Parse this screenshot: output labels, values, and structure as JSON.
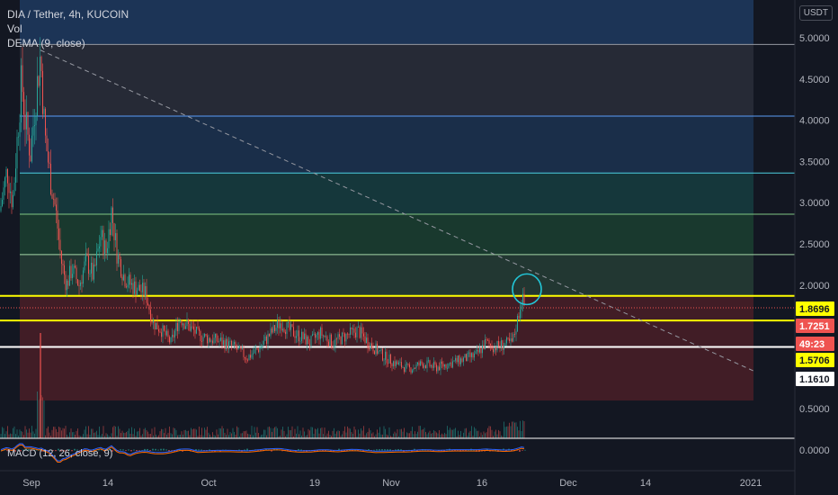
{
  "header": {
    "symbol": "DIA / Tether, 4h, KUCOIN",
    "indicator_vol": "Vol",
    "indicator_dema": "DEMA (9, close)",
    "indicator_macd": "MACD (12, 26, close, 9)",
    "currency": "USDT"
  },
  "colors": {
    "background": "#131722",
    "up": "#26a69a",
    "down": "#ef5350",
    "highlight_line": "#ffff00",
    "white_line": "#ffffff",
    "circle": "#22c5d6"
  },
  "chart_data": {
    "type": "candlestick",
    "y_axis": {
      "ticks": [
        "5.0000",
        "4.5000",
        "4.0000",
        "3.5000",
        "3.0000",
        "2.5000",
        "2.0000",
        "0.5000",
        "0.0000"
      ],
      "tick_values": [
        5.0,
        4.5,
        4.0,
        3.5,
        3.0,
        2.5,
        2.0,
        0.5,
        0.0
      ]
    },
    "x_axis": {
      "ticks": [
        "Sep",
        "14",
        "Oct",
        "19",
        "Nov",
        "16",
        "Dec",
        "14",
        "2021"
      ]
    },
    "price_tags": [
      {
        "label": "1.8696",
        "value": 1.8696,
        "style": "yellow"
      },
      {
        "label": "1.7251",
        "value": 1.7251,
        "style": "red"
      },
      {
        "label": "49:23",
        "value": 1.63,
        "style": "red-countdown"
      },
      {
        "label": "1.5706",
        "value": 1.5706,
        "style": "yellow"
      },
      {
        "label": "1.1610",
        "value": 1.161,
        "style": "white"
      }
    ],
    "horizontal_levels": [
      {
        "value": 4.92,
        "color": "#9598a1"
      },
      {
        "value": 4.05,
        "color": "#5b9cf6"
      },
      {
        "value": 3.36,
        "color": "#4dd0e1"
      },
      {
        "value": 2.86,
        "color": "#81c784"
      },
      {
        "value": 2.37,
        "color": "#a5d6a7"
      },
      {
        "value": 1.8696,
        "color": "#ffff00"
      },
      {
        "value": 1.5706,
        "color": "#ffff00"
      },
      {
        "value": 1.25,
        "color": "#ffffff"
      }
    ],
    "zones": [
      {
        "from": 4.92,
        "to": 5.5,
        "color": "#1e3a5f"
      },
      {
        "from": 4.05,
        "to": 4.92,
        "color": "#2a2e39"
      },
      {
        "from": 3.36,
        "to": 4.05,
        "color": "#1c3350"
      },
      {
        "from": 2.86,
        "to": 3.36,
        "color": "#163d3f"
      },
      {
        "from": 2.37,
        "to": 2.86,
        "color": "#1b4030"
      },
      {
        "from": 1.8696,
        "to": 2.37,
        "color": "#263d35"
      },
      {
        "from": 0.6,
        "to": 1.8696,
        "color": "#4a1f27"
      }
    ],
    "trendline": {
      "from": {
        "x": 45,
        "y": 4.85
      },
      "to": {
        "x": 840,
        "y": 0.95
      },
      "color": "#9598a1"
    },
    "current_price": 1.7251,
    "price_path": [
      [
        0,
        2.9
      ],
      [
        8,
        3.4
      ],
      [
        14,
        3.0
      ],
      [
        20,
        3.9
      ],
      [
        24,
        4.5
      ],
      [
        28,
        4.0
      ],
      [
        34,
        3.6
      ],
      [
        40,
        4.3
      ],
      [
        45,
        4.8
      ],
      [
        50,
        3.8
      ],
      [
        56,
        3.3
      ],
      [
        62,
        2.9
      ],
      [
        68,
        2.3
      ],
      [
        74,
        2.0
      ],
      [
        80,
        2.2
      ],
      [
        88,
        2.0
      ],
      [
        96,
        2.3
      ],
      [
        104,
        2.1
      ],
      [
        112,
        2.6
      ],
      [
        118,
        2.4
      ],
      [
        124,
        2.9
      ],
      [
        130,
        2.4
      ],
      [
        138,
        2.1
      ],
      [
        146,
        2.0
      ],
      [
        154,
        1.95
      ],
      [
        162,
        1.9
      ],
      [
        170,
        1.55
      ],
      [
        180,
        1.45
      ],
      [
        190,
        1.3
      ],
      [
        200,
        1.6
      ],
      [
        210,
        1.5
      ],
      [
        220,
        1.4
      ],
      [
        232,
        1.35
      ],
      [
        245,
        1.32
      ],
      [
        260,
        1.25
      ],
      [
        275,
        1.12
      ],
      [
        290,
        1.25
      ],
      [
        300,
        1.4
      ],
      [
        312,
        1.55
      ],
      [
        322,
        1.45
      ],
      [
        334,
        1.38
      ],
      [
        345,
        1.3
      ],
      [
        356,
        1.42
      ],
      [
        370,
        1.3
      ],
      [
        384,
        1.38
      ],
      [
        398,
        1.45
      ],
      [
        410,
        1.3
      ],
      [
        425,
        1.15
      ],
      [
        440,
        1.05
      ],
      [
        455,
        0.98
      ],
      [
        470,
        1.05
      ],
      [
        485,
        1.0
      ],
      [
        500,
        1.05
      ],
      [
        515,
        1.1
      ],
      [
        530,
        1.15
      ],
      [
        540,
        1.3
      ],
      [
        550,
        1.25
      ],
      [
        560,
        1.28
      ],
      [
        570,
        1.3
      ],
      [
        576,
        1.6
      ],
      [
        580,
        1.85
      ],
      [
        584,
        1.72
      ]
    ]
  }
}
